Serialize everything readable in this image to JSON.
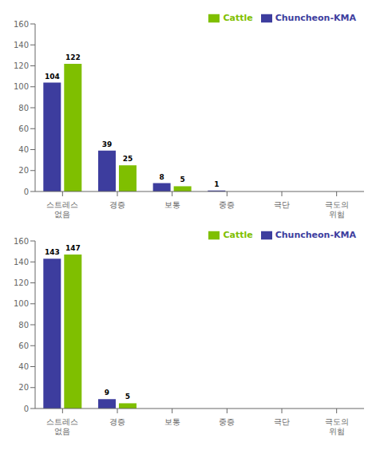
{
  "chart_data": [
    {
      "type": "bar",
      "categories": [
        "스트레스 없음",
        "경증",
        "보통",
        "중증",
        "극단",
        "극도의 위험"
      ],
      "series": [
        {
          "name": "Chuncheon-KMA",
          "color": "#3d3d9e",
          "values": [
            104,
            39,
            8,
            1,
            0,
            0
          ]
        },
        {
          "name": "Cattle",
          "color": "#7fbf00",
          "values": [
            122,
            25,
            5,
            0,
            0,
            0
          ]
        }
      ],
      "ylim": [
        0,
        160
      ],
      "yticks": [
        0,
        20,
        40,
        60,
        80,
        100,
        120,
        140,
        160
      ],
      "grid": false,
      "legend": "upper right",
      "data_labels": true
    },
    {
      "type": "bar",
      "categories": [
        "스트레스 없음",
        "경증",
        "보통",
        "중증",
        "극단",
        "극도의 위험"
      ],
      "series": [
        {
          "name": "Chuncheon-KMA",
          "color": "#3d3d9e",
          "values": [
            143,
            9,
            0,
            0,
            0,
            0
          ]
        },
        {
          "name": "Cattle",
          "color": "#7fbf00",
          "values": [
            147,
            5,
            0,
            0,
            0,
            0
          ]
        }
      ],
      "ylim": [
        0,
        160
      ],
      "yticks": [
        0,
        20,
        40,
        60,
        80,
        100,
        120,
        140,
        160
      ],
      "grid": false,
      "legend": "upper right",
      "data_labels": true
    }
  ]
}
